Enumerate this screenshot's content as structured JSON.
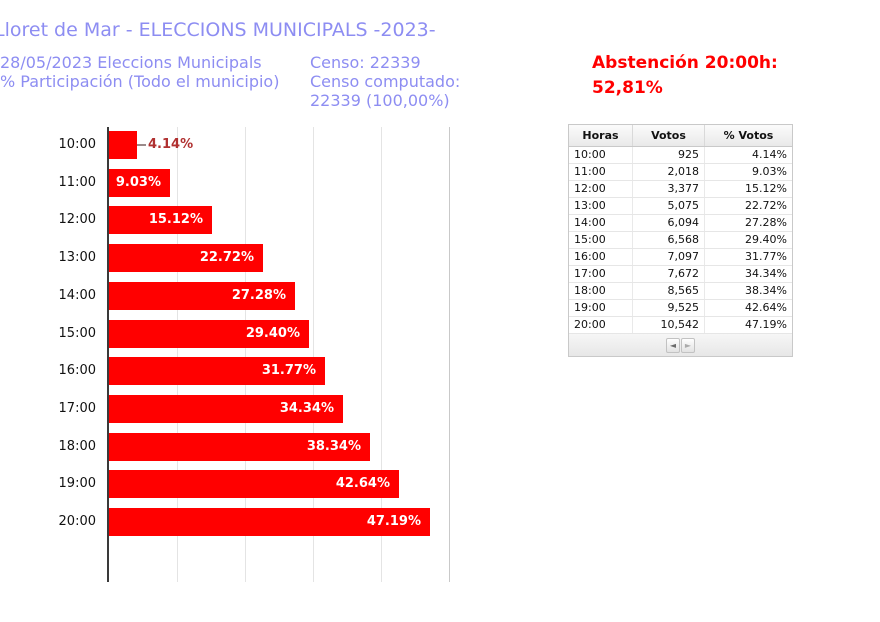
{
  "header": {
    "title": "Lloret de Mar - ELECCIONS MUNICIPALS -2023-",
    "subtitle_line1": "28/05/2023 Eleccions Municipals",
    "subtitle_line2": "% Participación (Todo el municipio)",
    "censo_line1": "Censo: 22339",
    "censo_line2": "Censo computado:",
    "censo_line3": "22339 (100,00%)",
    "abstencion": "Abstención 20:00h: 52,81%"
  },
  "colors": {
    "heading_text": "#8d8df2",
    "abstencion_text": "#ff0000",
    "bar": "#ff0000",
    "bar_label_inside": "#ffffff",
    "bar_label_outside": "#b03030",
    "axis": "#3a3a3a",
    "gridline": "#e4e4e4"
  },
  "chart_data": {
    "type": "bar",
    "orientation": "horizontal",
    "title": "% Participación (Todo el municipio)",
    "categories": [
      "10:00",
      "11:00",
      "12:00",
      "13:00",
      "14:00",
      "15:00",
      "16:00",
      "17:00",
      "18:00",
      "19:00",
      "20:00"
    ],
    "values": [
      4.14,
      9.03,
      15.12,
      22.72,
      27.28,
      29.4,
      31.77,
      34.34,
      38.34,
      42.64,
      47.19
    ],
    "labels": [
      "4.14%",
      "9.03%",
      "15.12%",
      "22.72%",
      "27.28%",
      "29.40%",
      "31.77%",
      "34.34%",
      "38.34%",
      "42.64%",
      "47.19%"
    ],
    "xlabel": "",
    "ylabel": "",
    "xlim": [
      0,
      50
    ],
    "gridline_step": 10,
    "grid": true,
    "legend": false
  },
  "table": {
    "headers": [
      "Horas",
      "Votos",
      "% Votos"
    ],
    "rows": [
      [
        "10:00",
        "925",
        "4.14%"
      ],
      [
        "11:00",
        "2,018",
        "9.03%"
      ],
      [
        "12:00",
        "3,377",
        "15.12%"
      ],
      [
        "13:00",
        "5,075",
        "22.72%"
      ],
      [
        "14:00",
        "6,094",
        "27.28%"
      ],
      [
        "15:00",
        "6,568",
        "29.40%"
      ],
      [
        "16:00",
        "7,097",
        "31.77%"
      ],
      [
        "17:00",
        "7,672",
        "34.34%"
      ],
      [
        "18:00",
        "8,565",
        "38.34%"
      ],
      [
        "19:00",
        "9,525",
        "42.64%"
      ],
      [
        "20:00",
        "10,542",
        "47.19%"
      ]
    ],
    "pager": {
      "prev_icon": "◄",
      "next_icon": "►"
    }
  }
}
